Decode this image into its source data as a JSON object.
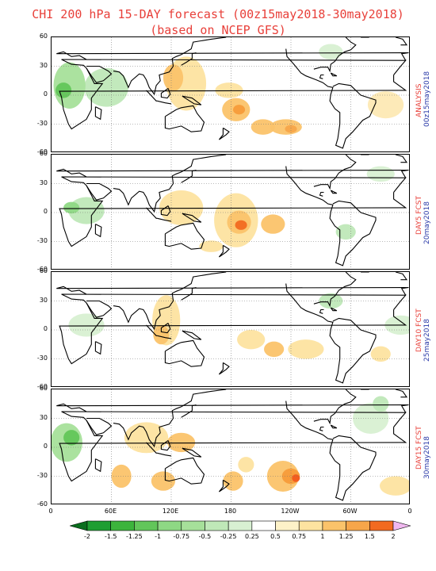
{
  "title": {
    "line1": "CHI 200 hPa 15-DAY forecast (00z15may2018-30may2018)",
    "line2": "(based on NCEP GFS)"
  },
  "panels": [
    {
      "label1": "ANALYSIS",
      "label2": "00z15may2018",
      "blobs": [
        {
          "lon": 55,
          "lat": 8,
          "rx": 22,
          "ry": 20,
          "color": "#bfe8b8"
        },
        {
          "lon": 18,
          "lat": 10,
          "rx": 16,
          "ry": 24,
          "color": "#a6e09a"
        },
        {
          "lon": 12,
          "lat": 5,
          "rx": 8,
          "ry": 8,
          "color": "#62c65a"
        },
        {
          "lon": 135,
          "lat": 12,
          "rx": 20,
          "ry": 28,
          "color": "#fde3a0"
        },
        {
          "lon": 122,
          "lat": 18,
          "rx": 10,
          "ry": 14,
          "color": "#fbc36a"
        },
        {
          "lon": 178,
          "lat": 5,
          "rx": 14,
          "ry": 8,
          "color": "#fde3a0"
        },
        {
          "lon": -175,
          "lat": -15,
          "rx": 14,
          "ry": 12,
          "color": "#fbc36a"
        },
        {
          "lon": -172,
          "lat": -15,
          "rx": 6,
          "ry": 5,
          "color": "#f79c3a"
        },
        {
          "lon": -148,
          "lat": -33,
          "rx": 12,
          "ry": 8,
          "color": "#fbc36a"
        },
        {
          "lon": -125,
          "lat": -33,
          "rx": 16,
          "ry": 8,
          "color": "#fbc36a"
        },
        {
          "lon": -120,
          "lat": -35,
          "rx": 6,
          "ry": 4,
          "color": "#f7a64a"
        },
        {
          "lon": -25,
          "lat": -10,
          "rx": 18,
          "ry": 14,
          "color": "#fde9b4"
        },
        {
          "lon": -80,
          "lat": 45,
          "rx": 12,
          "ry": 8,
          "color": "#d8f0d2"
        }
      ]
    },
    {
      "label1": "DAY5 FCST",
      "label2": "20may2018",
      "blobs": [
        {
          "lon": 35,
          "lat": 2,
          "rx": 18,
          "ry": 14,
          "color": "#bfe8b8"
        },
        {
          "lon": 20,
          "lat": 5,
          "rx": 8,
          "ry": 6,
          "color": "#8ed884"
        },
        {
          "lon": 130,
          "lat": 5,
          "rx": 22,
          "ry": 18,
          "color": "#fde3a0"
        },
        {
          "lon": -175,
          "lat": -8,
          "rx": 22,
          "ry": 28,
          "color": "#fde3a0"
        },
        {
          "lon": -172,
          "lat": -10,
          "rx": 12,
          "ry": 12,
          "color": "#fbc36a"
        },
        {
          "lon": -170,
          "lat": -13,
          "rx": 6,
          "ry": 5,
          "color": "#f26a20"
        },
        {
          "lon": -138,
          "lat": -12,
          "rx": 12,
          "ry": 10,
          "color": "#fbc36a"
        },
        {
          "lon": 160,
          "lat": -35,
          "rx": 12,
          "ry": 6,
          "color": "#fde3a0"
        },
        {
          "lon": -30,
          "lat": 40,
          "rx": 14,
          "ry": 8,
          "color": "#d8f0d2"
        },
        {
          "lon": -65,
          "lat": -20,
          "rx": 10,
          "ry": 8,
          "color": "#bfe8b8"
        }
      ]
    },
    {
      "label1": "DAY10 FCST",
      "label2": "25may2018",
      "blobs": [
        {
          "lon": 35,
          "lat": 5,
          "rx": 18,
          "ry": 12,
          "color": "#d8f0d2"
        },
        {
          "lon": 115,
          "lat": 10,
          "rx": 14,
          "ry": 26,
          "color": "#fde3a0"
        },
        {
          "lon": 110,
          "lat": -5,
          "rx": 8,
          "ry": 10,
          "color": "#fbc36a"
        },
        {
          "lon": -160,
          "lat": -10,
          "rx": 14,
          "ry": 10,
          "color": "#fde3a0"
        },
        {
          "lon": -137,
          "lat": -20,
          "rx": 10,
          "ry": 8,
          "color": "#fbc36a"
        },
        {
          "lon": -105,
          "lat": -20,
          "rx": 18,
          "ry": 10,
          "color": "#fde3a0"
        },
        {
          "lon": -30,
          "lat": -25,
          "rx": 10,
          "ry": 8,
          "color": "#fde3a0"
        },
        {
          "lon": -10,
          "lat": 5,
          "rx": 16,
          "ry": 10,
          "color": "#d8f0d2"
        },
        {
          "lon": -80,
          "lat": 30,
          "rx": 12,
          "ry": 8,
          "color": "#bfe8b8"
        }
      ]
    },
    {
      "label1": "DAY15 FCST",
      "label2": "30may2018",
      "blobs": [
        {
          "lon": 15,
          "lat": 5,
          "rx": 16,
          "ry": 20,
          "color": "#a6e09a"
        },
        {
          "lon": 20,
          "lat": 10,
          "rx": 8,
          "ry": 8,
          "color": "#62c65a"
        },
        {
          "lon": 95,
          "lat": 10,
          "rx": 22,
          "ry": 16,
          "color": "#fde3a0"
        },
        {
          "lon": 130,
          "lat": 5,
          "rx": 14,
          "ry": 10,
          "color": "#fbc36a"
        },
        {
          "lon": 70,
          "lat": -30,
          "rx": 10,
          "ry": 12,
          "color": "#fbc36a"
        },
        {
          "lon": 112,
          "lat": -35,
          "rx": 12,
          "ry": 10,
          "color": "#fbc36a"
        },
        {
          "lon": -178,
          "lat": -35,
          "rx": 10,
          "ry": 10,
          "color": "#fbc36a"
        },
        {
          "lon": -128,
          "lat": -30,
          "rx": 16,
          "ry": 16,
          "color": "#fbc36a"
        },
        {
          "lon": -120,
          "lat": -30,
          "rx": 9,
          "ry": 8,
          "color": "#f79c3a"
        },
        {
          "lon": -115,
          "lat": -32,
          "rx": 4,
          "ry": 4,
          "color": "#f25a1e"
        },
        {
          "lon": -165,
          "lat": -18,
          "rx": 8,
          "ry": 8,
          "color": "#fde3a0"
        },
        {
          "lon": -15,
          "lat": -40,
          "rx": 16,
          "ry": 10,
          "color": "#fde3a0"
        },
        {
          "lon": -40,
          "lat": 30,
          "rx": 18,
          "ry": 16,
          "color": "#d8f0d2"
        },
        {
          "lon": -30,
          "lat": 45,
          "rx": 8,
          "ry": 8,
          "color": "#bfe8b8"
        }
      ]
    }
  ],
  "lat_ticks": [
    "60",
    "30",
    "0",
    "-30",
    "-60"
  ],
  "lon_ticks": [
    "0",
    "60E",
    "120E",
    "180",
    "120W",
    "60W",
    "0"
  ],
  "colorbar": {
    "labels": [
      "-2",
      "-1.5",
      "-1.25",
      "-1",
      "-0.75",
      "-0.5",
      "-0.25",
      "0.25",
      "0.5",
      "0.75",
      "1",
      "1.25",
      "1.5",
      "2"
    ],
    "colors": [
      "#1e9e32",
      "#3cb43c",
      "#62c65a",
      "#8ed884",
      "#a6e09a",
      "#bfe8b8",
      "#d8f0d2",
      "#ffffff",
      "#fdf2c8",
      "#fde3a0",
      "#fbc36a",
      "#f7a64a",
      "#f26a20",
      "#f23a14"
    ],
    "left_arrow_color": "#0a6e1e",
    "right_arrow_color": "#f0b8f0"
  }
}
